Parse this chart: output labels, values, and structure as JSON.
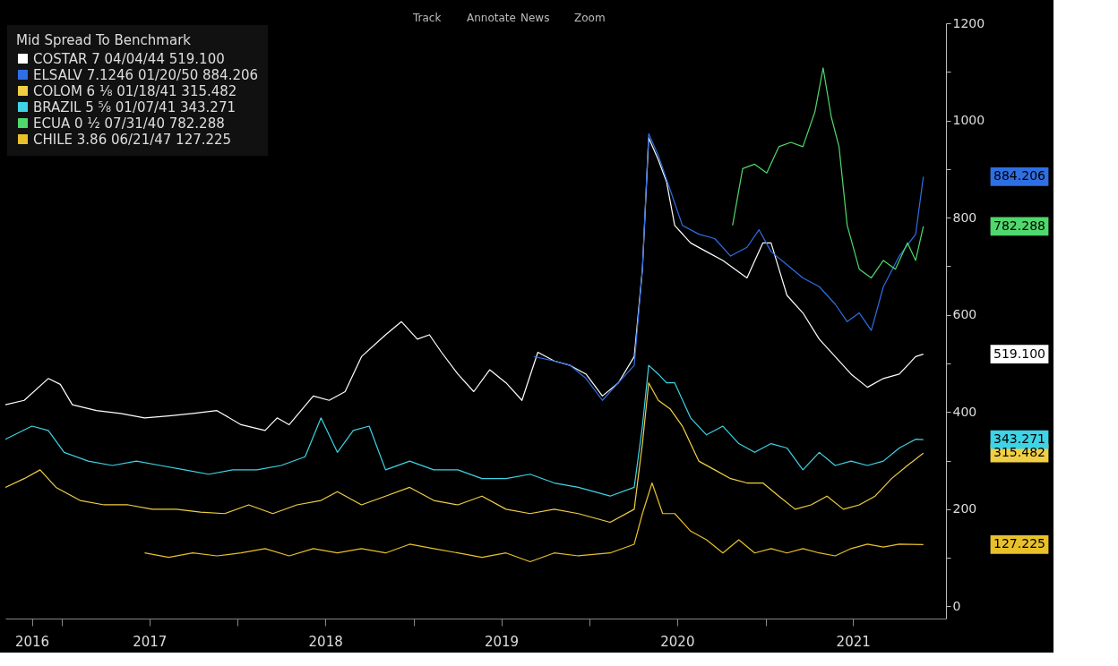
{
  "chart_data": {
    "type": "line",
    "legend_title": "Mid Spread To Benchmark",
    "legend": "top left",
    "grid": false,
    "marker": "none",
    "line_style": "solid",
    "xlim": [
      "2016-09-06",
      "2022-01-10"
    ],
    "xticks": [
      {
        "value": "2016-10-31",
        "label": "2016"
      },
      {
        "value": "2017-01-01",
        "label": null
      },
      {
        "value": "2017-07-02",
        "label": "2017"
      },
      {
        "value": "2018-01-01",
        "label": null
      },
      {
        "value": "2018-07-02",
        "label": "2018"
      },
      {
        "value": "2019-01-01",
        "label": null
      },
      {
        "value": "2019-07-02",
        "label": "2019"
      },
      {
        "value": "2020-01-01",
        "label": null
      },
      {
        "value": "2020-07-01",
        "label": "2020"
      },
      {
        "value": "2021-01-01",
        "label": null
      },
      {
        "value": "2021-07-01",
        "label": "2021"
      }
    ],
    "ylim": [
      -25,
      1200
    ],
    "yticks": [
      0,
      {
        "value": 100,
        "label": null
      },
      200,
      {
        "value": 300,
        "label": null
      },
      400,
      {
        "value": 500,
        "label": null
      },
      600,
      {
        "value": 700,
        "label": null
      },
      800,
      {
        "value": 900,
        "label": null
      },
      1000,
      {
        "value": 1100,
        "label": null
      },
      1200
    ],
    "series": [
      {
        "name": "COSTAR 7 04/04/44   519.100",
        "color": "#ffffff",
        "x": [
          "2016-09-06",
          "2016-10-15",
          "2016-12-04",
          "2016-12-29",
          "2017-01-23",
          "2017-03-14",
          "2017-05-03",
          "2017-06-22",
          "2017-08-11",
          "2017-09-30",
          "2017-11-19",
          "2018-01-08",
          "2018-02-27",
          "2018-03-24",
          "2018-04-18",
          "2018-06-07",
          "2018-07-10",
          "2018-08-12",
          "2018-09-15",
          "2018-11-04",
          "2018-12-07",
          "2019-01-09",
          "2019-02-03",
          "2019-02-28",
          "2019-04-03",
          "2019-05-06",
          "2019-06-08",
          "2019-07-12",
          "2019-08-14",
          "2019-09-16",
          "2019-10-20",
          "2019-11-22",
          "2019-12-25",
          "2020-01-28",
          "2020-03-01",
          "2020-04-03",
          "2020-04-20",
          "2020-05-03",
          "2020-05-23",
          "2020-06-09",
          "2020-06-26",
          "2020-07-29",
          "2020-08-31",
          "2020-10-04",
          "2020-10-29",
          "2020-11-23",
          "2020-12-26",
          "2021-01-12",
          "2021-02-14",
          "2021-03-19",
          "2021-04-22",
          "2021-05-25",
          "2021-06-27",
          "2021-07-31",
          "2021-09-02",
          "2021-10-05",
          "2021-11-08",
          "2021-11-24"
        ],
        "values": [
          415,
          424,
          469,
          457,
          415,
          403,
          397,
          388,
          392,
          397,
          403,
          374,
          362,
          388,
          374,
          433,
          424,
          442,
          514,
          559,
          586,
          550,
          559,
          523,
          478,
          442,
          487,
          460,
          424,
          523,
          505,
          496,
          478,
          433,
          460,
          514,
          694,
          964,
          919,
          874,
          784,
          748,
          730,
          712,
          694,
          676,
          748,
          748,
          640,
          604,
          550,
          514,
          478,
          451,
          469,
          478,
          514,
          519.1
        ]
      },
      {
        "name": "ELSALV 7.1246 01/20/50 884.206",
        "color": "#2f6fe4",
        "x": [
          "2019-09-08",
          "2019-10-20",
          "2019-11-22",
          "2019-12-25",
          "2020-01-28",
          "2020-03-01",
          "2020-04-03",
          "2020-04-20",
          "2020-05-03",
          "2020-05-23",
          "2020-06-17",
          "2020-07-12",
          "2020-08-15",
          "2020-09-17",
          "2020-10-20",
          "2020-11-23",
          "2020-12-18",
          "2021-01-12",
          "2021-02-14",
          "2021-03-19",
          "2021-04-22",
          "2021-05-25",
          "2021-06-19",
          "2021-07-14",
          "2021-08-08",
          "2021-09-02",
          "2021-10-05",
          "2021-11-08",
          "2021-11-24"
        ],
        "values": [
          514,
          505,
          496,
          469,
          424,
          460,
          496,
          694,
          973,
          928,
          856,
          784,
          766,
          757,
          721,
          739,
          775,
          730,
          703,
          676,
          658,
          622,
          586,
          604,
          568,
          658,
          721,
          766,
          884.206
        ]
      },
      {
        "name": "COLOM 6 ⅛ 01/18/41   315.482",
        "color": "#f0cf45",
        "x": [
          "2016-09-06",
          "2016-10-15",
          "2016-11-17",
          "2016-12-20",
          "2017-02-08",
          "2017-03-30",
          "2017-05-19",
          "2017-07-08",
          "2017-08-27",
          "2017-10-16",
          "2017-12-05",
          "2018-01-24",
          "2018-03-15",
          "2018-05-04",
          "2018-06-23",
          "2018-07-27",
          "2018-09-15",
          "2018-11-04",
          "2018-12-24",
          "2019-02-12",
          "2019-04-03",
          "2019-05-23",
          "2019-07-12",
          "2019-08-31",
          "2019-10-20",
          "2019-12-09",
          "2020-02-13",
          "2020-04-03",
          "2020-04-20",
          "2020-05-03",
          "2020-05-23",
          "2020-06-17",
          "2020-07-12",
          "2020-08-15",
          "2020-09-17",
          "2020-10-20",
          "2020-11-23",
          "2020-12-26",
          "2021-01-28",
          "2021-03-03",
          "2021-04-05",
          "2021-05-08",
          "2021-06-11",
          "2021-07-14",
          "2021-08-16",
          "2021-09-19",
          "2021-10-22",
          "2021-11-24"
        ],
        "values": [
          245,
          263,
          281,
          245,
          218,
          209,
          209,
          200,
          200,
          194,
          191,
          209,
          191,
          209,
          218,
          236,
          209,
          227,
          245,
          218,
          209,
          227,
          200,
          191,
          200,
          191,
          173,
          200,
          335,
          460,
          424,
          406,
          371,
          299,
          281,
          263,
          254,
          254,
          227,
          200,
          209,
          227,
          200,
          209,
          227,
          263,
          290,
          315.482
        ]
      },
      {
        "name": "BRAZIL 5 ⅝ 01/07/41   343.271",
        "color": "#3fd3e6",
        "x": [
          "2016-09-06",
          "2016-10-31",
          "2016-12-04",
          "2017-01-06",
          "2017-02-25",
          "2017-04-16",
          "2017-06-05",
          "2017-07-25",
          "2017-09-13",
          "2017-11-02",
          "2017-12-22",
          "2018-02-10",
          "2018-04-01",
          "2018-05-21",
          "2018-06-23",
          "2018-07-27",
          "2018-08-29",
          "2018-10-01",
          "2018-11-04",
          "2018-12-24",
          "2019-02-12",
          "2019-04-03",
          "2019-05-23",
          "2019-07-12",
          "2019-08-31",
          "2019-10-20",
          "2019-12-09",
          "2020-02-13",
          "2020-04-03",
          "2020-04-20",
          "2020-05-03",
          "2020-05-23",
          "2020-06-09",
          "2020-06-26",
          "2020-07-29",
          "2020-08-31",
          "2020-10-04",
          "2020-11-06",
          "2020-12-09",
          "2021-01-12",
          "2021-02-14",
          "2021-03-19",
          "2021-04-22",
          "2021-05-25",
          "2021-06-27",
          "2021-07-31",
          "2021-09-02",
          "2021-10-05",
          "2021-11-08",
          "2021-11-24"
        ],
        "values": [
          344,
          371,
          362,
          317,
          299,
          290,
          299,
          290,
          281,
          272,
          281,
          281,
          290,
          308,
          388,
          317,
          362,
          371,
          281,
          299,
          281,
          281,
          263,
          263,
          272,
          254,
          245,
          227,
          245,
          371,
          496,
          478,
          460,
          460,
          388,
          353,
          371,
          335,
          317,
          335,
          326,
          281,
          317,
          290,
          299,
          290,
          299,
          326,
          344,
          343.271
        ]
      },
      {
        "name": "ECUA 0 ½ 07/31/40   782.288",
        "color": "#4fd86b",
        "x": [
          "2020-10-24",
          "2020-11-14",
          "2020-12-09",
          "2021-01-03",
          "2021-01-28",
          "2021-02-22",
          "2021-03-19",
          "2021-04-13",
          "2021-04-30",
          "2021-05-17",
          "2021-06-02",
          "2021-06-19",
          "2021-07-14",
          "2021-08-08",
          "2021-09-02",
          "2021-09-27",
          "2021-10-22",
          "2021-11-08",
          "2021-11-24"
        ],
        "values": [
          784,
          901,
          910,
          892,
          946,
          955,
          946,
          1018,
          1108,
          1007,
          946,
          784,
          694,
          676,
          712,
          694,
          748,
          712,
          782.288
        ]
      },
      {
        "name": "CHILE 3.86 06/21/47   127.225",
        "color": "#e8c12a",
        "x": [
          "2017-06-22",
          "2017-08-11",
          "2017-09-30",
          "2017-11-19",
          "2018-01-08",
          "2018-02-27",
          "2018-04-18",
          "2018-06-07",
          "2018-07-27",
          "2018-09-15",
          "2018-11-04",
          "2018-12-24",
          "2019-02-12",
          "2019-04-03",
          "2019-05-23",
          "2019-07-12",
          "2019-08-31",
          "2019-10-20",
          "2019-12-09",
          "2020-02-13",
          "2020-04-03",
          "2020-04-20",
          "2020-05-10",
          "2020-06-01",
          "2020-06-26",
          "2020-07-29",
          "2020-08-31",
          "2020-10-04",
          "2020-11-06",
          "2020-12-09",
          "2021-01-12",
          "2021-02-14",
          "2021-03-19",
          "2021-04-22",
          "2021-05-25",
          "2021-06-27",
          "2021-07-31",
          "2021-09-02",
          "2021-10-05",
          "2021-11-24"
        ],
        "values": [
          110,
          101,
          110,
          104,
          110,
          119,
          104,
          119,
          110,
          119,
          110,
          128,
          119,
          110,
          101,
          110,
          92,
          110,
          104,
          110,
          128,
          191,
          254,
          191,
          191,
          155,
          137,
          110,
          137,
          110,
          119,
          110,
          119,
          110,
          104,
          119,
          128,
          122,
          128,
          127.225
        ]
      }
    ],
    "annotations": [
      "519.100",
      "884.206",
      "315.482",
      "343.271",
      "782.288",
      "127.225",
      "Track",
      "Annotate",
      "News",
      "Zoom"
    ]
  }
}
